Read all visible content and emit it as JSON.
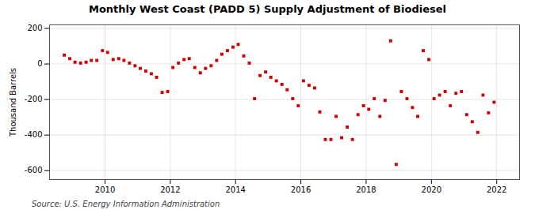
{
  "chart_data": {
    "type": "scatter",
    "title": "Monthly West Coast (PADD 5) Supply Adjustment of Biodiesel",
    "ylabel": "Thousand Barrels",
    "source": "Source: U.S. Energy Information Administration",
    "color": "#cc0000",
    "marker": "square",
    "grid": true,
    "xlim": [
      2008.3,
      2022.7
    ],
    "xticks": [
      2010,
      2012,
      2014,
      2016,
      2018,
      2020,
      2022
    ],
    "ylim": [
      -650,
      220
    ],
    "yticks": [
      -600,
      -400,
      -200,
      0,
      200
    ],
    "x": [
      2008.75,
      2008.92,
      2009.08,
      2009.25,
      2009.42,
      2009.58,
      2009.75,
      2009.92,
      2010.08,
      2010.25,
      2010.42,
      2010.58,
      2010.75,
      2010.92,
      2011.08,
      2011.25,
      2011.42,
      2011.58,
      2011.75,
      2011.92,
      2012.08,
      2012.25,
      2012.42,
      2012.58,
      2012.75,
      2012.92,
      2013.08,
      2013.25,
      2013.42,
      2013.58,
      2013.75,
      2013.92,
      2014.08,
      2014.25,
      2014.42,
      2014.58,
      2014.75,
      2014.92,
      2015.08,
      2015.25,
      2015.42,
      2015.58,
      2015.75,
      2015.92,
      2016.08,
      2016.25,
      2016.42,
      2016.58,
      2016.75,
      2016.92,
      2017.08,
      2017.25,
      2017.42,
      2017.58,
      2017.75,
      2017.92,
      2018.08,
      2018.25,
      2018.42,
      2018.58,
      2018.75,
      2018.92,
      2019.08,
      2019.25,
      2019.42,
      2019.58,
      2019.75,
      2019.92,
      2020.08,
      2020.25,
      2020.42,
      2020.58,
      2020.75,
      2020.92,
      2021.08,
      2021.25,
      2021.42,
      2021.58,
      2021.75,
      2021.92
    ],
    "values": [
      50,
      30,
      10,
      5,
      10,
      20,
      20,
      75,
      65,
      25,
      30,
      20,
      5,
      -10,
      -25,
      -40,
      -55,
      -75,
      -160,
      -155,
      -20,
      5,
      25,
      30,
      -20,
      -50,
      -25,
      -10,
      20,
      55,
      75,
      95,
      110,
      45,
      5,
      -195,
      -65,
      -45,
      -75,
      -95,
      -115,
      -145,
      -195,
      -235,
      -95,
      -120,
      -135,
      -270,
      -425,
      -425,
      -295,
      -415,
      -355,
      -425,
      -285,
      -235,
      -255,
      -195,
      -295,
      -205,
      130,
      -565,
      -155,
      -195,
      -245,
      -295,
      75,
      25,
      -195,
      -175,
      -155,
      -235,
      -165,
      -155,
      -285,
      -325,
      -385,
      -175,
      -275,
      -215
    ]
  }
}
